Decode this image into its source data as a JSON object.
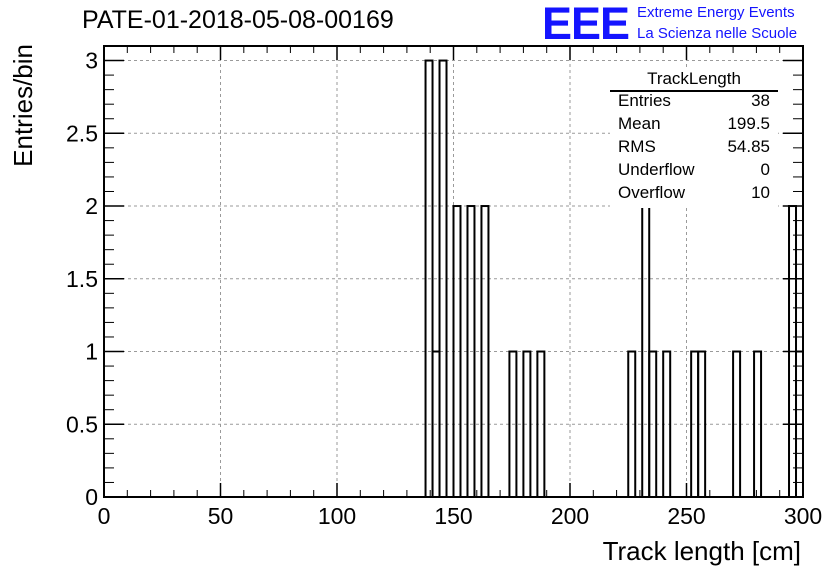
{
  "header": {
    "title": "PATE-01-2018-05-08-00169"
  },
  "logo": {
    "mark": "EEE",
    "line1": "Extreme Energy Events",
    "line2": "La Scienza nelle Scuole"
  },
  "stats_box": {
    "title": "TrackLength",
    "rows": [
      {
        "key": "Entries",
        "value": "38"
      },
      {
        "key": "Mean",
        "value": "199.5"
      },
      {
        "key": "RMS",
        "value": "54.85"
      },
      {
        "key": "Underflow",
        "value": "0"
      },
      {
        "key": "Overflow",
        "value": "10"
      }
    ]
  },
  "chart_data": {
    "type": "bar",
    "style": "histogram-step",
    "xlabel": "Track length [cm]",
    "ylabel": "Entries/bin",
    "xlim": [
      0,
      300
    ],
    "ylim": [
      0,
      3.1
    ],
    "bin_width": 3,
    "grid": true,
    "x_ticks": [
      "0",
      "50",
      "100",
      "150",
      "200",
      "250",
      "300"
    ],
    "y_ticks": [
      "0",
      "0.5",
      "1",
      "1.5",
      "2",
      "2.5",
      "3"
    ],
    "bins": [
      {
        "x": 138,
        "value": 3
      },
      {
        "x": 141,
        "value": 1
      },
      {
        "x": 144,
        "value": 3
      },
      {
        "x": 150,
        "value": 2
      },
      {
        "x": 156,
        "value": 2
      },
      {
        "x": 162,
        "value": 2
      },
      {
        "x": 174,
        "value": 1
      },
      {
        "x": 180,
        "value": 1
      },
      {
        "x": 186,
        "value": 1
      },
      {
        "x": 225,
        "value": 1
      },
      {
        "x": 231,
        "value": 2
      },
      {
        "x": 234,
        "value": 1
      },
      {
        "x": 240,
        "value": 1
      },
      {
        "x": 252,
        "value": 1
      },
      {
        "x": 255,
        "value": 1
      },
      {
        "x": 270,
        "value": 1
      },
      {
        "x": 279,
        "value": 1
      },
      {
        "x": 294,
        "value": 2
      },
      {
        "x": 297,
        "value": 1
      }
    ]
  }
}
